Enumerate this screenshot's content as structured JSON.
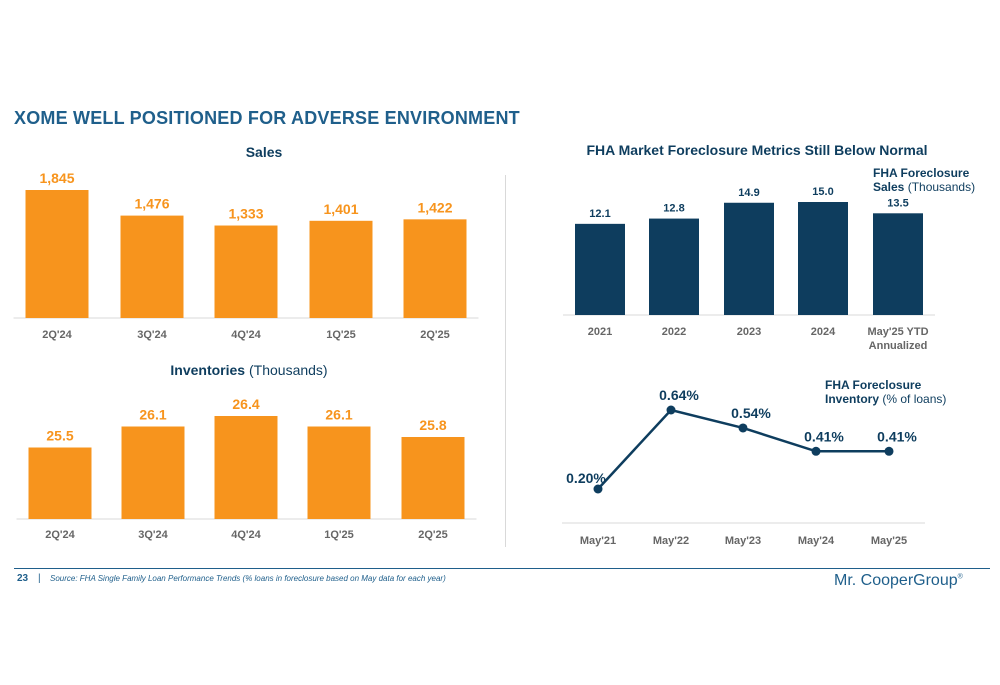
{
  "header": {
    "title": "XOME WELL POSITIONED FOR ADVERSE ENVIRONMENT"
  },
  "colors": {
    "orange": "#F7941D",
    "navy": "#0E3D5E",
    "title_blue": "#1F5F8B",
    "axis_text": "#666666"
  },
  "chart_data": [
    {
      "id": "sales",
      "type": "bar",
      "title": "Sales",
      "title_suffix": "",
      "categories": [
        "2Q'24",
        "3Q'24",
        "4Q'24",
        "1Q'25",
        "2Q'25"
      ],
      "values": [
        1845,
        1476,
        1333,
        1401,
        1422
      ],
      "labels": [
        "1,845",
        "1,476",
        "1,333",
        "1,401",
        "1,422"
      ],
      "ylim": [
        0,
        1845
      ],
      "color": "#F7941D"
    },
    {
      "id": "inventories",
      "type": "bar",
      "title": "Inventories",
      "title_suffix": "(Thousands)",
      "categories": [
        "2Q'24",
        "3Q'24",
        "4Q'24",
        "1Q'25",
        "2Q'25"
      ],
      "values": [
        25.5,
        26.1,
        26.4,
        26.1,
        25.8
      ],
      "labels": [
        "25.5",
        "26.1",
        "26.4",
        "26.1",
        "25.8"
      ],
      "ylim": [
        24.2,
        26.4
      ],
      "color": "#F7941D"
    },
    {
      "id": "fha-sales",
      "type": "bar",
      "title": "FHA Market Foreclosure Metrics Still Below Normal",
      "legend_title": [
        "FHA Foreclosure",
        "Sales"
      ],
      "legend_suffix": "(Thousands)",
      "categories": [
        "2021",
        "2022",
        "2023",
        "2024",
        "May'25 YTD"
      ],
      "category_sublabels": [
        "",
        "",
        "",
        "",
        "Annualized"
      ],
      "values": [
        12.1,
        12.8,
        14.9,
        15.0,
        13.5
      ],
      "labels": [
        "12.1",
        "12.8",
        "14.9",
        "15.0",
        "13.5"
      ],
      "ylim": [
        0,
        15.0
      ],
      "color": "#0E3D5E"
    },
    {
      "id": "fha-inventory",
      "type": "line",
      "legend_title": [
        "FHA Foreclosure",
        "Inventory"
      ],
      "legend_suffix": "(% of loans)",
      "x": [
        "May'21",
        "May'22",
        "May'23",
        "May'24",
        "May'25"
      ],
      "values": [
        0.2,
        0.64,
        0.54,
        0.41,
        0.41
      ],
      "labels": [
        "0.20%",
        "0.64%",
        "0.54%",
        "0.41%",
        "0.41%"
      ],
      "ylim": [
        0.2,
        0.64
      ],
      "color": "#0E3D5E"
    }
  ],
  "footer": {
    "page_number": "23",
    "separator": "|",
    "source": "Source: FHA Single Family Loan Performance Trends (% loans in foreclosure based on May data for each year)",
    "logo": "Mr. CooperGroup",
    "logo_mark": "®"
  }
}
